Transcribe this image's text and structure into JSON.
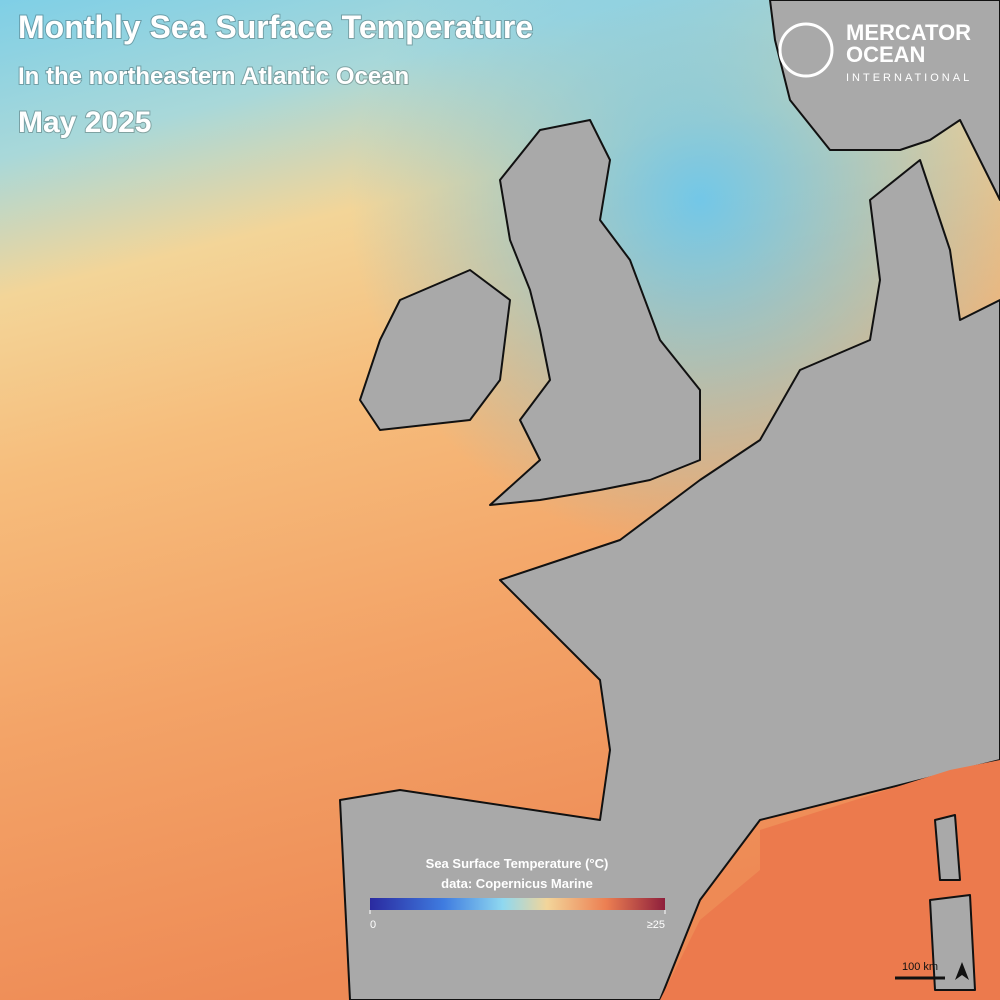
{
  "header": {
    "title": "Monthly Sea Surface Temperature",
    "subtitle": "In the northeastern Atlantic Ocean",
    "date": "May 2025"
  },
  "logo": {
    "line1": "MERCATOR",
    "line2": "OCEAN",
    "line3": "INTERNATIONAL"
  },
  "colorbar": {
    "title": "Sea Surface Temperature (°C)",
    "source": "data: Copernicus Marine",
    "range": [
      0,
      25
    ],
    "ticks": [
      0,
      {
        "value": 25,
        "label": "≥25"
      }
    ]
  },
  "scale_bar": {
    "label": "100 km"
  }
}
